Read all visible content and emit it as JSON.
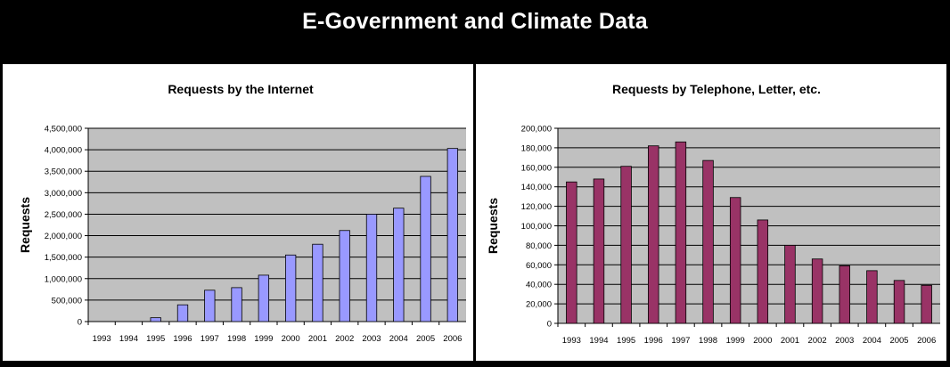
{
  "page": {
    "title": "E-Government and Climate Data"
  },
  "chart_data": [
    {
      "type": "bar",
      "title": "Requests by the Internet",
      "xlabel": "",
      "ylabel": "Requests",
      "ylim": [
        0,
        4500000
      ],
      "yticks": [
        "0",
        "500,000",
        "1,000,000",
        "1,500,000",
        "2,000,000",
        "2,500,000",
        "3,000,000",
        "3,500,000",
        "4,000,000",
        "4,500,000"
      ],
      "categories": [
        "1993",
        "1994",
        "1995",
        "1996",
        "1997",
        "1998",
        "1999",
        "2000",
        "2001",
        "2002",
        "2003",
        "2004",
        "2005",
        "2006"
      ],
      "values": [
        0,
        0,
        90000,
        390000,
        730000,
        790000,
        1080000,
        1550000,
        1800000,
        2120000,
        2500000,
        2640000,
        3380000,
        4030000
      ],
      "grid": true,
      "bar_color": "#9999ff",
      "plot_background": "#c0c0c0"
    },
    {
      "type": "bar",
      "title": "Requests by Telephone, Letter, etc.",
      "xlabel": "",
      "ylabel": "Requests",
      "ylim": [
        0,
        200000
      ],
      "yticks": [
        "0",
        "20,000",
        "40,000",
        "60,000",
        "80,000",
        "100,000",
        "120,000",
        "140,000",
        "160,000",
        "180,000",
        "200,000"
      ],
      "categories": [
        "1993",
        "1994",
        "1995",
        "1996",
        "1997",
        "1998",
        "1999",
        "2000",
        "2001",
        "2002",
        "2003",
        "2004",
        "2005",
        "2006"
      ],
      "values": [
        145000,
        148000,
        161000,
        182000,
        186000,
        167000,
        129000,
        106000,
        80000,
        66000,
        59000,
        54000,
        44000,
        39000
      ],
      "grid": true,
      "bar_color": "#993366",
      "plot_background": "#c0c0c0"
    }
  ]
}
